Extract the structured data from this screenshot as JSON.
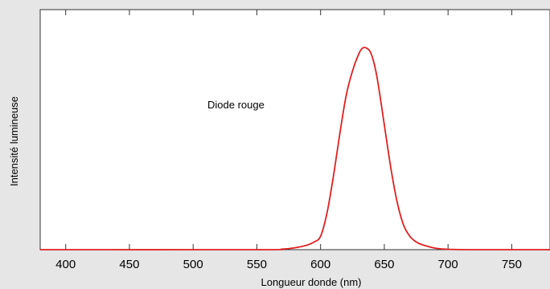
{
  "chart_data": {
    "type": "line",
    "title": "",
    "xlabel": "Longueur donde (nm)",
    "ylabel": "Intensité lumineuse",
    "xlim": [
      380,
      780
    ],
    "ylim": [
      0,
      1.25
    ],
    "xticks": [
      400,
      450,
      500,
      550,
      600,
      650,
      700,
      750
    ],
    "grid": false,
    "annotation": "Diode rouge",
    "series": [
      {
        "color": "#e02020",
        "x": [
          380,
          550,
          570,
          580,
          590,
          595,
          600,
          605,
          610,
          615,
          620,
          625,
          630,
          633,
          636,
          639,
          642,
          645,
          650,
          655,
          660,
          665,
          670,
          675,
          680,
          690,
          700,
          720,
          780
        ],
        "y": [
          0,
          0,
          0.003,
          0.01,
          0.025,
          0.04,
          0.07,
          0.19,
          0.38,
          0.6,
          0.8,
          0.93,
          1.02,
          1.05,
          1.05,
          1.03,
          0.97,
          0.87,
          0.65,
          0.43,
          0.25,
          0.13,
          0.07,
          0.04,
          0.025,
          0.008,
          0.002,
          0,
          0
        ]
      }
    ]
  }
}
